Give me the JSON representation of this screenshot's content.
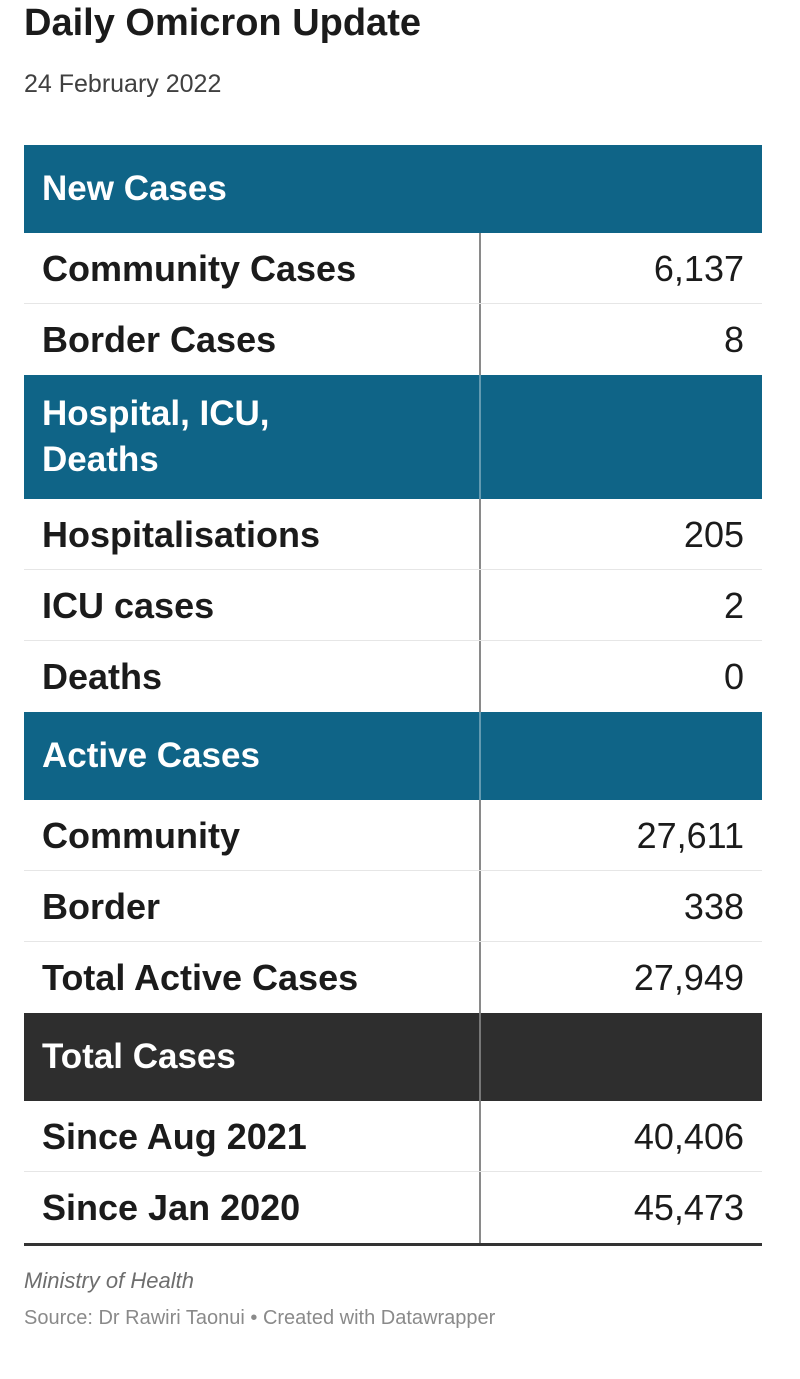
{
  "title": "Daily Omicron Update",
  "subtitle": "24 February 2022",
  "chart_data": {
    "type": "table",
    "sections": [
      {
        "header": "New Cases",
        "header_lines": [
          "New Cases"
        ],
        "style": "teal",
        "rows": [
          {
            "label": "Community Cases",
            "value": "6,137"
          },
          {
            "label": "Border Cases",
            "value": "8"
          }
        ]
      },
      {
        "header": "Hospital, ICU, Deaths",
        "header_lines": [
          "Hospital, ICU,",
          "Deaths"
        ],
        "style": "teal",
        "rows": [
          {
            "label": "Hospitalisations",
            "value": "205"
          },
          {
            "label": "ICU cases",
            "value": "2"
          },
          {
            "label": "Deaths",
            "value": "0"
          }
        ]
      },
      {
        "header": "Active Cases",
        "header_lines": [
          "Active Cases"
        ],
        "style": "teal",
        "rows": [
          {
            "label": "Community",
            "value": "27,611"
          },
          {
            "label": "Border",
            "value": "338"
          },
          {
            "label": "Total Active Cases",
            "value": "27,949"
          }
        ]
      },
      {
        "header": "Total Cases",
        "header_lines": [
          "Total Cases"
        ],
        "style": "dark",
        "rows": [
          {
            "label": "Since Aug 2021",
            "value": "40,406"
          },
          {
            "label": "Since Jan 2020",
            "value": "45,473"
          }
        ]
      }
    ]
  },
  "footer": {
    "organization": "Ministry of Health",
    "source": "Source: Dr Rawiri Taonui • Created with Datawrapper"
  },
  "colors": {
    "section_header": "#0f6487",
    "total_header": "#2e2e2e"
  }
}
